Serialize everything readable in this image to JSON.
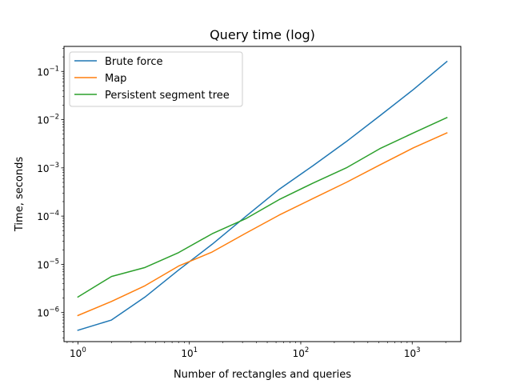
{
  "chart_data": {
    "type": "line",
    "title": "Query time (log)",
    "xlabel": "Number of rectangles and queries",
    "ylabel": "Time, seconds",
    "xscale": "log",
    "yscale": "log",
    "xlim": [
      0.75,
      2730
    ],
    "ylim": [
      2.5e-07,
      0.33
    ],
    "grid": false,
    "legend_position": "upper left",
    "xticks": [
      {
        "value": 1,
        "base": "10",
        "exp": "0"
      },
      {
        "value": 10,
        "base": "10",
        "exp": "1"
      },
      {
        "value": 100,
        "base": "10",
        "exp": "2"
      },
      {
        "value": 1000,
        "base": "10",
        "exp": "3"
      }
    ],
    "yticks": [
      {
        "value": 1e-06,
        "base": "10",
        "exp": "−6"
      },
      {
        "value": 1e-05,
        "base": "10",
        "exp": "−5"
      },
      {
        "value": 0.0001,
        "base": "10",
        "exp": "−4"
      },
      {
        "value": 0.001,
        "base": "10",
        "exp": "−3"
      },
      {
        "value": 0.01,
        "base": "10",
        "exp": "−2"
      },
      {
        "value": 0.1,
        "base": "10",
        "exp": "−1"
      }
    ],
    "x": [
      1,
      2,
      4,
      8,
      16,
      32,
      64,
      128,
      256,
      512,
      1024,
      2048
    ],
    "series": [
      {
        "name": "Brute force",
        "color": "#1f77b4",
        "values": [
          4.3e-07,
          7e-07,
          2.1e-06,
          7.6e-06,
          2.6e-05,
          9.8e-05,
          0.00036,
          0.0011,
          0.0035,
          0.012,
          0.042,
          0.16
        ]
      },
      {
        "name": "Map",
        "color": "#ff7f0e",
        "values": [
          8.7e-07,
          1.7e-06,
          3.6e-06,
          9.2e-06,
          1.8e-05,
          4.4e-05,
          0.000105,
          0.00023,
          0.0005,
          0.00115,
          0.0026,
          0.0053
        ]
      },
      {
        "name": "Persistent segment tree",
        "color": "#2ca02c",
        "values": [
          2.1e-06,
          5.6e-06,
          8.6e-06,
          1.75e-05,
          4.3e-05,
          8.8e-05,
          0.00022,
          0.00048,
          0.001,
          0.0025,
          0.0053,
          0.011
        ]
      }
    ]
  }
}
